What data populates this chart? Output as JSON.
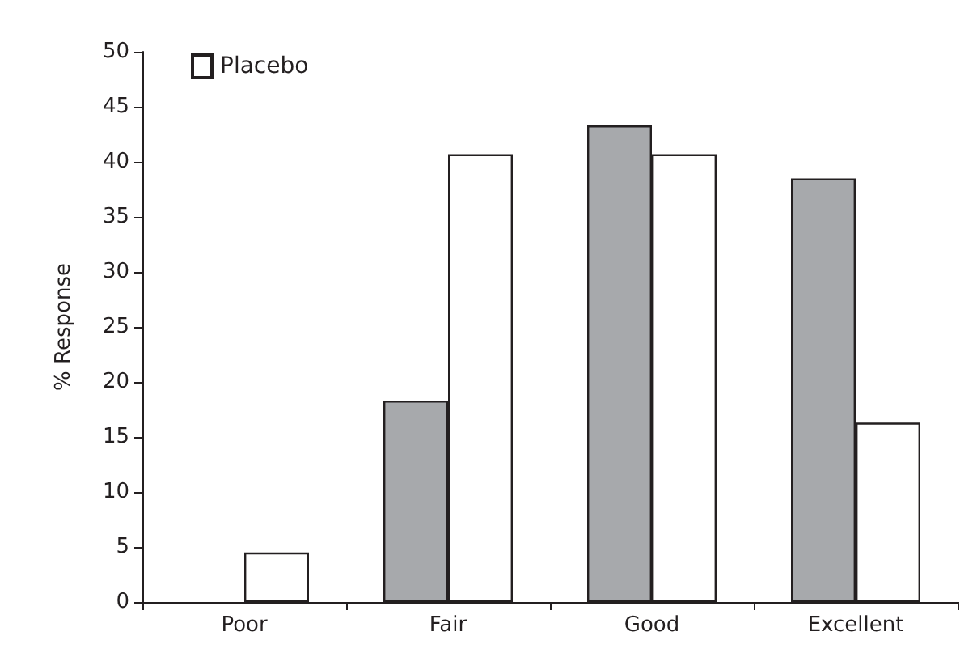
{
  "chart_data": {
    "type": "bar",
    "ylabel": "% Response",
    "categories": [
      "Poor",
      "Fair",
      "Good",
      "Excellent"
    ],
    "series": [
      {
        "color": "#a7a9ac",
        "values": [
          null,
          18.3,
          43.3,
          38.5
        ]
      },
      {
        "name": "Placebo",
        "color": "#ffffff",
        "values": [
          4.5,
          40.7,
          40.7,
          16.3
        ]
      }
    ],
    "ylim": [
      0,
      50
    ],
    "yticks": [
      0,
      5,
      10,
      15,
      20,
      25,
      30,
      35,
      40,
      45,
      50
    ],
    "grid": false,
    "legend": "top left"
  }
}
